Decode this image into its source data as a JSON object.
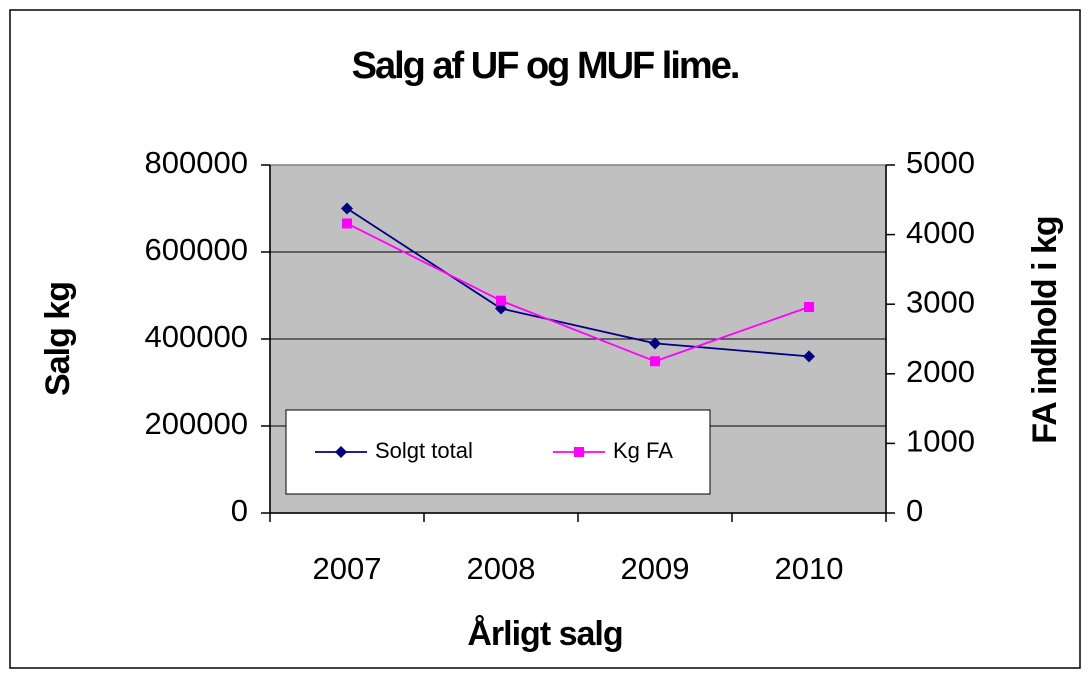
{
  "chart_data": {
    "type": "line",
    "title": "Salg af UF og MUF lime.",
    "xlabel": "Årligt salg",
    "ylabel": "Salg kg",
    "y2label": "FA indhold i kg",
    "categories": [
      "2007",
      "2008",
      "2009",
      "2010"
    ],
    "series": [
      {
        "name": "Solgt total",
        "color": "#000080",
        "marker": "diamond",
        "values": [
          700000,
          470000,
          390000,
          360000
        ]
      },
      {
        "name": "Kg FA",
        "color": "#ff00ff",
        "marker": "square",
        "axis": "y2",
        "values": [
          4160,
          3050,
          2180,
          2960
        ]
      }
    ],
    "ylim": [
      0,
      800000
    ],
    "yticks": [
      0,
      200000,
      400000,
      600000,
      800000
    ],
    "y2lim": [
      0,
      5000
    ],
    "y2ticks": [
      0,
      1000,
      2000,
      3000,
      4000,
      5000
    ],
    "grid": true,
    "legend": "lower left"
  }
}
